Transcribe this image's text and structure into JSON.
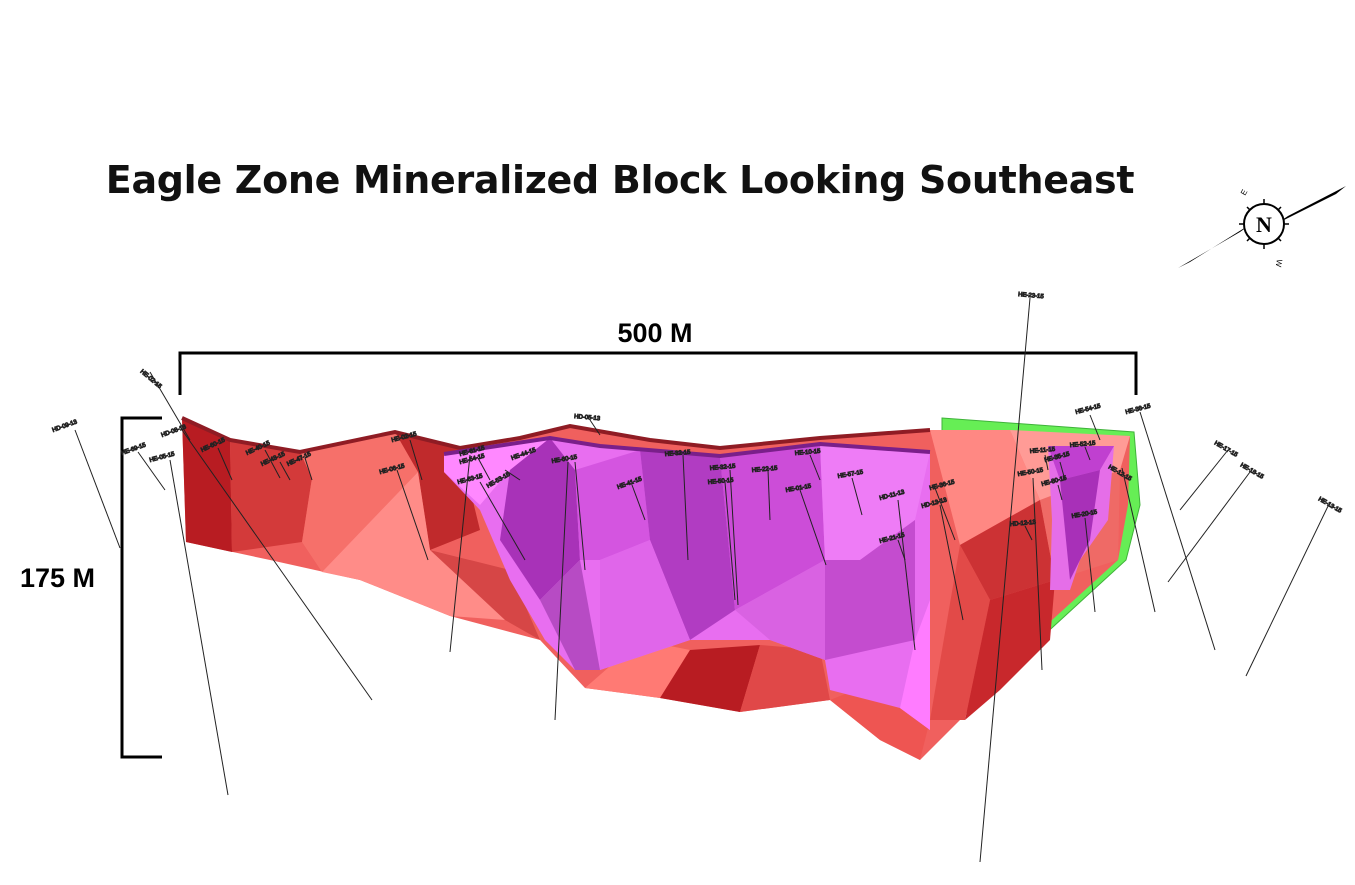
{
  "title": "Eagle Zone Mineralized Block Looking Southeast",
  "scale": {
    "horizontal_label": "500 M",
    "vertical_label": "175 M"
  },
  "compass": {
    "north_label": "N",
    "east_label": "E",
    "west_label": "W"
  },
  "colors": {
    "red_block": "#f0605e",
    "dark_red": "#b81c22",
    "magenta_block": "#e86ef0",
    "dark_magenta": "#a02bb4",
    "green_block": "#66ee55"
  },
  "drill_holes": [
    {
      "id": "h1",
      "label": "HE-02-15"
    },
    {
      "id": "h2",
      "label": "HD-09-13"
    },
    {
      "id": "h3",
      "label": "HE-69-15"
    },
    {
      "id": "h4",
      "label": "HE-05-15"
    },
    {
      "id": "h5",
      "label": "HD-08-13"
    },
    {
      "id": "h6",
      "label": "HE-60-15"
    },
    {
      "id": "h7",
      "label": "HE-40-15"
    },
    {
      "id": "h8",
      "label": "HE-43-15"
    },
    {
      "id": "h9",
      "label": "HE-47-15"
    },
    {
      "id": "h10",
      "label": "HE-02-15"
    },
    {
      "id": "h11",
      "label": "HE-06-15"
    },
    {
      "id": "h12",
      "label": "HE-61-15"
    },
    {
      "id": "h13",
      "label": "HE-54-15"
    },
    {
      "id": "h14",
      "label": "HE-63-15"
    },
    {
      "id": "h15",
      "label": "HE-53-15"
    },
    {
      "id": "h16",
      "label": "HD-05-13"
    },
    {
      "id": "h17",
      "label": "HE-60-15"
    },
    {
      "id": "h18",
      "label": "HE-44-15"
    },
    {
      "id": "h19",
      "label": "HE-41-15"
    },
    {
      "id": "h20",
      "label": "HE-32-15"
    },
    {
      "id": "h21",
      "label": "HE-32-15"
    },
    {
      "id": "h22",
      "label": "HE-50-15"
    },
    {
      "id": "h23",
      "label": "HE-22-15"
    },
    {
      "id": "h24",
      "label": "HE-10-15"
    },
    {
      "id": "h25",
      "label": "HE-01-15"
    },
    {
      "id": "h26",
      "label": "HE-57-15"
    },
    {
      "id": "h27",
      "label": "HD-11-13"
    },
    {
      "id": "h28",
      "label": "HE-21-15"
    },
    {
      "id": "h29",
      "label": "HE-36-15"
    },
    {
      "id": "h30",
      "label": "HD-13-13"
    },
    {
      "id": "h31",
      "label": "HE-23-15"
    },
    {
      "id": "h32",
      "label": "HE-11-15"
    },
    {
      "id": "h33",
      "label": "HE-35-15"
    },
    {
      "id": "h34",
      "label": "HE-52-15"
    },
    {
      "id": "h35",
      "label": "HE-50-15"
    },
    {
      "id": "h36",
      "label": "HE-80-15"
    },
    {
      "id": "h37",
      "label": "HD-12-13"
    },
    {
      "id": "h38",
      "label": "HE-20-15"
    },
    {
      "id": "h39",
      "label": "HE-54-15"
    },
    {
      "id": "h40",
      "label": "HE-38-15"
    },
    {
      "id": "h41",
      "label": "HE-12-15"
    },
    {
      "id": "h42",
      "label": "HE-17-15"
    },
    {
      "id": "h43",
      "label": "HE-18-15"
    },
    {
      "id": "h44",
      "label": "HE-13-15"
    }
  ]
}
